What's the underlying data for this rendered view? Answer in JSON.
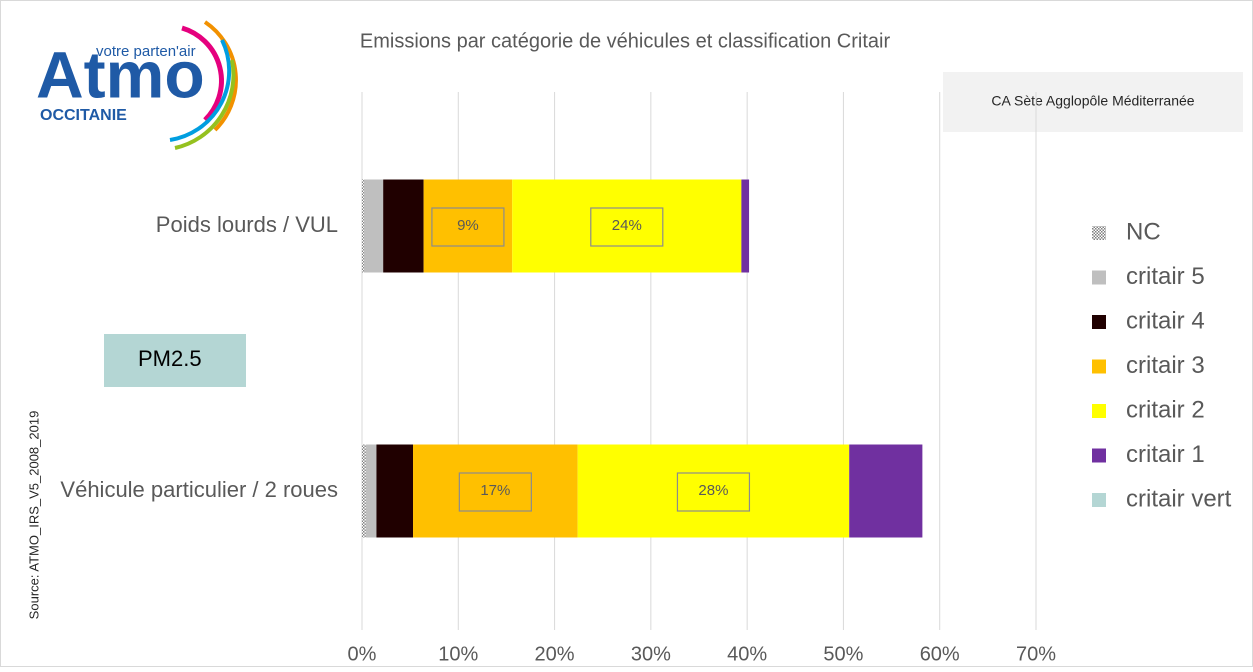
{
  "chart_data": {
    "type": "stacked-bar-horizontal",
    "title": "Emissions par catégorie de véhicules et classification Critair",
    "subtitle": "CA Sète Agglopôle Méditerranée",
    "annotation": "PM2.5",
    "source": "Source: ATMO_IRS_V5_2008_2019",
    "logo": {
      "name": "Atmo",
      "tagline": "votre parten'air",
      "region": "OCCITANIE"
    },
    "categories": [
      "Poids lourds / VUL",
      "Véhicule particulier / 2 roues"
    ],
    "series": [
      {
        "name": "NC",
        "color": "#808080",
        "pattern": "hatched",
        "values": [
          0.2,
          0.4
        ]
      },
      {
        "name": "critair 5",
        "color": "#bfbfbf",
        "values": [
          2.0,
          1.1
        ]
      },
      {
        "name": "critair 4",
        "color": "#200000",
        "values": [
          4.2,
          3.8
        ]
      },
      {
        "name": "critair 3",
        "color": "#ffc000",
        "values": [
          9.2,
          17.1
        ],
        "value_labels": [
          "9%",
          "17%"
        ]
      },
      {
        "name": "critair 2",
        "color": "#ffff00",
        "values": [
          23.8,
          28.2
        ],
        "value_labels": [
          "24%",
          "28%"
        ]
      },
      {
        "name": "critair 1",
        "color": "#7030a0",
        "values": [
          0.8,
          7.6
        ]
      },
      {
        "name": "critair vert",
        "color": "#b4d6d4",
        "values": [
          0,
          0
        ]
      }
    ],
    "xlim": [
      0,
      70
    ],
    "xticks": [
      {
        "value": 0,
        "label": "0%"
      },
      {
        "value": 10,
        "label": "10%"
      },
      {
        "value": 20,
        "label": "20%"
      },
      {
        "value": 30,
        "label": "30%"
      },
      {
        "value": 40,
        "label": "40%"
      },
      {
        "value": 50,
        "label": "50%"
      },
      {
        "value": 60,
        "label": "60%"
      },
      {
        "value": 70,
        "label": "70%"
      }
    ],
    "grid": true,
    "legend": "right"
  }
}
